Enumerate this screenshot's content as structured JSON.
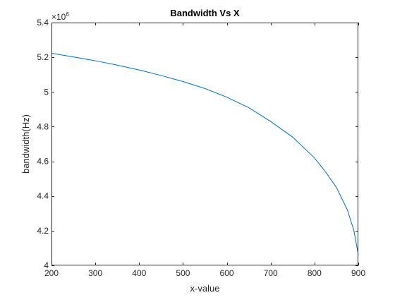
{
  "chart_data": {
    "type": "line",
    "title": "Bandwidth Vs X",
    "xlabel": "x-value",
    "ylabel": "bandwidth(Hz)",
    "xlim": [
      200,
      900
    ],
    "ylim": [
      4.0,
      5.4
    ],
    "y_exponent_label": "×10",
    "y_exponent_power": "6",
    "xticks": [
      200,
      300,
      400,
      500,
      600,
      700,
      800,
      900
    ],
    "xtick_labels": [
      "200",
      "300",
      "400",
      "500",
      "600",
      "700",
      "800",
      "900"
    ],
    "yticks": [
      4.0,
      4.2,
      4.4,
      4.6,
      4.8,
      5.0,
      5.2,
      5.4
    ],
    "ytick_labels": [
      "4",
      "4.2",
      "4.4",
      "4.6",
      "4.8",
      "5",
      "5.2",
      "5.4"
    ],
    "grid": false,
    "series": [
      {
        "color": "#0072BD",
        "x": [
          200,
          250,
          300,
          350,
          400,
          450,
          500,
          550,
          600,
          650,
          700,
          750,
          800,
          825,
          850,
          875,
          890,
          900
        ],
        "y": [
          5.223,
          5.202,
          5.18,
          5.155,
          5.127,
          5.095,
          5.06,
          5.02,
          4.97,
          4.91,
          4.83,
          4.74,
          4.62,
          4.54,
          4.45,
          4.32,
          4.2,
          4.06
        ]
      }
    ]
  }
}
